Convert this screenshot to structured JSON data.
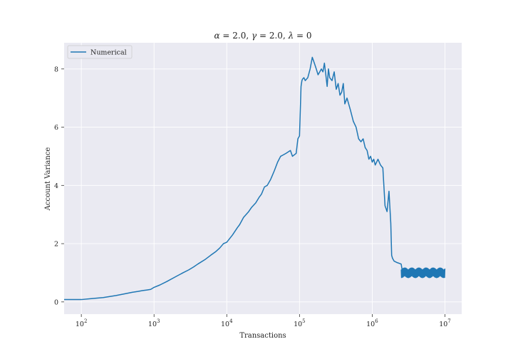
{
  "chart_data": {
    "type": "line",
    "title": "α = 2.0, γ = 2.0, λ = 0",
    "title_parts": {
      "alpha_symbol": "α",
      "alpha_value": " = 2.0, ",
      "gamma_symbol": "γ",
      "gamma_value": " = 2.0, ",
      "lambda_symbol": "λ",
      "lambda_value": " = 0"
    },
    "xlabel": "Transactions",
    "ylabel": "Account Variance",
    "x_scale": "log",
    "xlim": [
      58,
      17000000
    ],
    "ylim": [
      -0.42,
      8.9
    ],
    "x_ticks": [
      {
        "value": 100,
        "base": "10",
        "exp": "2"
      },
      {
        "value": 1000,
        "base": "10",
        "exp": "3"
      },
      {
        "value": 10000,
        "base": "10",
        "exp": "4"
      },
      {
        "value": 100000,
        "base": "10",
        "exp": "5"
      },
      {
        "value": 1000000,
        "base": "10",
        "exp": "6"
      },
      {
        "value": 10000000,
        "base": "10",
        "exp": "7"
      }
    ],
    "y_ticks": [
      {
        "value": 0,
        "label": "0"
      },
      {
        "value": 2,
        "label": "2"
      },
      {
        "value": 4,
        "label": "4"
      },
      {
        "value": 6,
        "label": "6"
      },
      {
        "value": 8,
        "label": "8"
      }
    ],
    "grid": true,
    "legend_position": "top-left",
    "colors": {
      "series": "#1f77b4",
      "background": "#eaeaf2",
      "grid": "#ffffff"
    },
    "series": [
      {
        "name": "Numerical",
        "x": [
          58,
          100,
          150,
          200,
          300,
          400,
          500,
          600,
          700,
          800,
          900,
          1000,
          1200,
          1500,
          2000,
          2500,
          3000,
          3500,
          4000,
          5000,
          6000,
          7000,
          8000,
          9000,
          10000,
          12000,
          14000,
          15000,
          17000,
          20000,
          22000,
          25000,
          28000,
          30000,
          33000,
          36000,
          40000,
          45000,
          50000,
          55000,
          60000,
          65000,
          70000,
          75000,
          80000,
          90000,
          95000,
          100000,
          105000,
          108000,
          110000,
          115000,
          120000,
          130000,
          140000,
          150000,
          160000,
          170000,
          180000,
          190000,
          200000,
          210000,
          220000,
          230000,
          240000,
          250000,
          260000,
          280000,
          300000,
          320000,
          340000,
          360000,
          380000,
          400000,
          420000,
          450000,
          500000,
          550000,
          600000,
          650000,
          700000,
          750000,
          800000,
          850000,
          900000,
          950000,
          1000000,
          1050000,
          1100000,
          1150000,
          1200000,
          1300000,
          1400000,
          1500000,
          1550000,
          1600000,
          1700000,
          1800000,
          1850000,
          1900000,
          2000000,
          2200000,
          2500000,
          2600000,
          3000000,
          3500000,
          4000000,
          5000000,
          6000000,
          7000000,
          8000000,
          9000000,
          10000000
        ],
        "y": [
          0.08,
          0.08,
          0.12,
          0.15,
          0.22,
          0.28,
          0.33,
          0.36,
          0.39,
          0.41,
          0.43,
          0.5,
          0.58,
          0.7,
          0.87,
          1.0,
          1.1,
          1.2,
          1.3,
          1.45,
          1.6,
          1.72,
          1.85,
          2.0,
          2.05,
          2.3,
          2.55,
          2.65,
          2.9,
          3.1,
          3.25,
          3.4,
          3.6,
          3.7,
          3.95,
          4.0,
          4.2,
          4.5,
          4.8,
          5.0,
          5.05,
          5.1,
          5.15,
          5.2,
          5.0,
          5.1,
          5.6,
          5.7,
          7.4,
          7.6,
          7.65,
          7.7,
          7.6,
          7.7,
          8.0,
          8.4,
          8.2,
          8.0,
          7.8,
          7.9,
          8.0,
          7.9,
          8.2,
          7.8,
          7.4,
          8.0,
          7.7,
          7.6,
          7.9,
          7.3,
          7.5,
          7.1,
          7.2,
          7.5,
          6.8,
          7.0,
          6.6,
          6.2,
          6.0,
          5.6,
          5.5,
          5.6,
          5.3,
          5.2,
          4.9,
          5.0,
          4.8,
          4.9,
          4.7,
          4.8,
          4.9,
          4.7,
          4.6,
          3.3,
          3.2,
          3.1,
          3.8,
          2.7,
          1.6,
          1.5,
          1.4,
          1.35,
          1.3,
          1.05,
          1.0,
          1.0,
          1.0,
          1.0,
          1.0,
          1.0,
          1.0,
          1.0,
          1.0
        ]
      }
    ]
  }
}
